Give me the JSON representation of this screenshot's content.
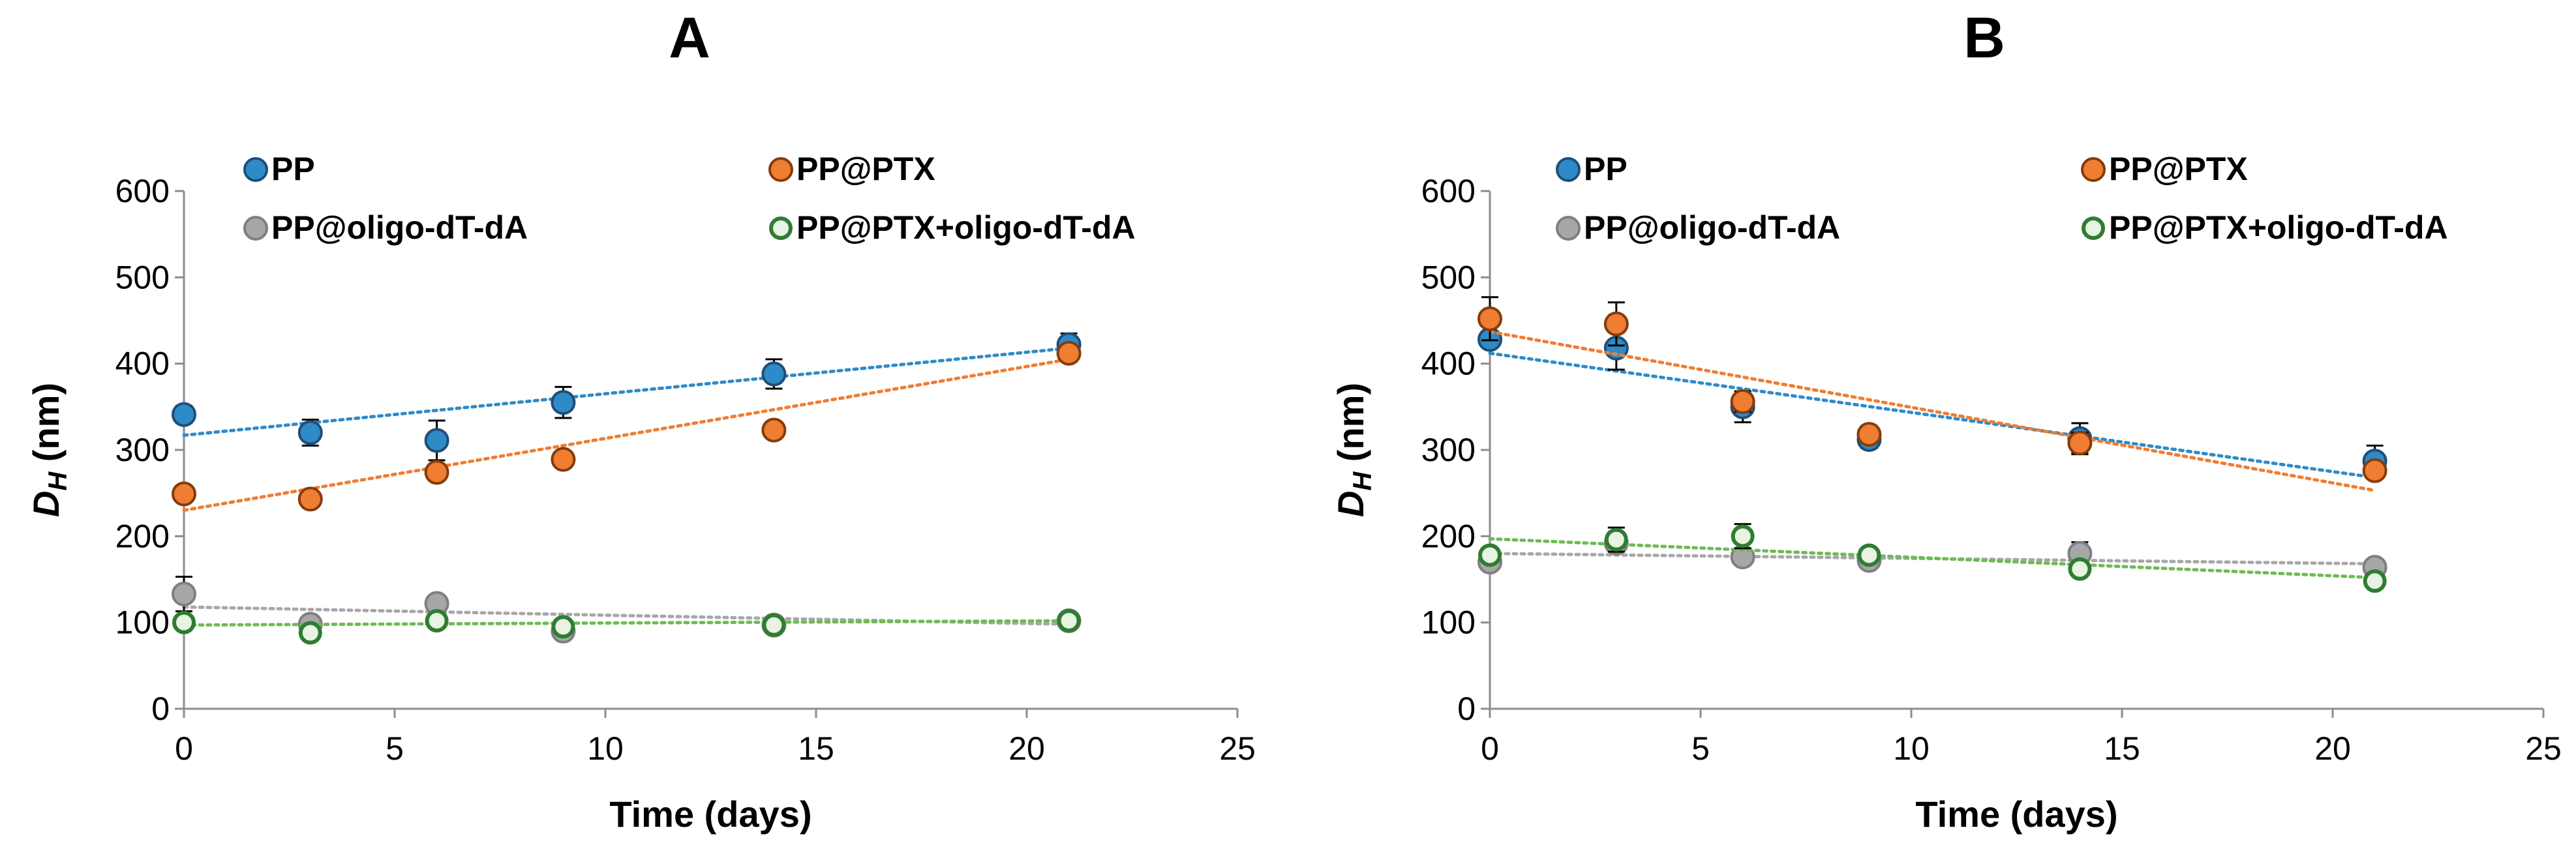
{
  "figure": {
    "colors": {
      "PP": "#2e8bc7",
      "PP@PTX": "#ef7d32",
      "PP@oligo-dT-dA": "#a7a7a7",
      "PP@PTX+oligo-dT-dA": "#6fba56"
    },
    "stroke_colors": {
      "PP": "#1f4e79",
      "PP@PTX": "#843c0c",
      "PP@oligo-dT-dA": "#7f7f7f",
      "PP@PTX+oligo-dT-dA": "#2f7d32"
    }
  },
  "chart_data": [
    {
      "type": "scatter",
      "panel": "A",
      "title": "A",
      "xlabel": "Time (days)",
      "ylabel_main": "D",
      "ylabel_sub": "H",
      "ylabel_unit": " (nm)",
      "xlim": [
        0,
        25
      ],
      "ylim": [
        0,
        600
      ],
      "xticks": [
        0,
        5,
        10,
        15,
        20,
        25
      ],
      "yticks": [
        0,
        100,
        200,
        300,
        400,
        500,
        600
      ],
      "grid": false,
      "legend_position": "top",
      "series": [
        {
          "name": "PP",
          "x": [
            0,
            3,
            6,
            9,
            14,
            21
          ],
          "y": [
            341,
            320,
            311,
            355,
            388,
            422
          ],
          "err": [
            10,
            15,
            23,
            18,
            17,
            13
          ],
          "trend": [
            317,
            418
          ],
          "hollow": false
        },
        {
          "name": "PP@PTX",
          "x": [
            0,
            3,
            6,
            9,
            14,
            21
          ],
          "y": [
            249,
            243,
            274,
            289,
            323,
            412
          ],
          "err": [
            5,
            8,
            9,
            5,
            5,
            6
          ],
          "trend": [
            230,
            405
          ],
          "hollow": false
        },
        {
          "name": "PP@oligo-dT-dA",
          "x": [
            0,
            3,
            6,
            9,
            14,
            21
          ],
          "y": [
            133,
            98,
            122,
            90,
            97,
            102
          ],
          "err": [
            20,
            7,
            7,
            5,
            5,
            5
          ],
          "trend": [
            118,
            98
          ],
          "hollow": false
        },
        {
          "name": "PP@PTX+oligo-dT-dA",
          "x": [
            0,
            3,
            6,
            9,
            14,
            21
          ],
          "y": [
            100,
            88,
            102,
            95,
            97,
            102
          ],
          "err": [
            5,
            5,
            5,
            5,
            5,
            5
          ],
          "trend": [
            97,
            102
          ],
          "hollow": true
        }
      ]
    },
    {
      "type": "scatter",
      "panel": "B",
      "title": "B",
      "xlabel": "Time (days)",
      "ylabel_main": "D",
      "ylabel_sub": "H",
      "ylabel_unit": " (nm)",
      "xlim": [
        0,
        25
      ],
      "ylim": [
        0,
        600
      ],
      "xticks": [
        0,
        5,
        10,
        15,
        20,
        25
      ],
      "yticks": [
        0,
        100,
        200,
        300,
        400,
        500,
        600
      ],
      "grid": false,
      "legend_position": "top",
      "series": [
        {
          "name": "PP",
          "x": [
            0,
            3,
            6,
            9,
            14,
            21
          ],
          "y": [
            428,
            418,
            350,
            312,
            313,
            287
          ],
          "err": [
            8,
            25,
            18,
            10,
            18,
            18
          ],
          "trend": [
            412,
            268
          ],
          "hollow": false
        },
        {
          "name": "PP@PTX",
          "x": [
            0,
            3,
            6,
            9,
            14,
            21
          ],
          "y": [
            452,
            446,
            356,
            318,
            308,
            276
          ],
          "err": [
            25,
            25,
            12,
            10,
            12,
            8
          ],
          "trend": [
            437,
            253
          ],
          "hollow": false
        },
        {
          "name": "PP@oligo-dT-dA",
          "x": [
            0,
            3,
            6,
            9,
            14,
            21
          ],
          "y": [
            170,
            192,
            176,
            172,
            180,
            164
          ],
          "err": [
            5,
            5,
            5,
            5,
            13,
            5
          ],
          "trend": [
            180,
            168
          ],
          "hollow": false
        },
        {
          "name": "PP@PTX+oligo-dT-dA",
          "x": [
            0,
            3,
            6,
            9,
            14,
            21
          ],
          "y": [
            178,
            196,
            200,
            178,
            162,
            148
          ],
          "err": [
            8,
            14,
            14,
            5,
            5,
            5
          ],
          "trend": [
            197,
            152
          ],
          "hollow": true
        }
      ]
    }
  ]
}
